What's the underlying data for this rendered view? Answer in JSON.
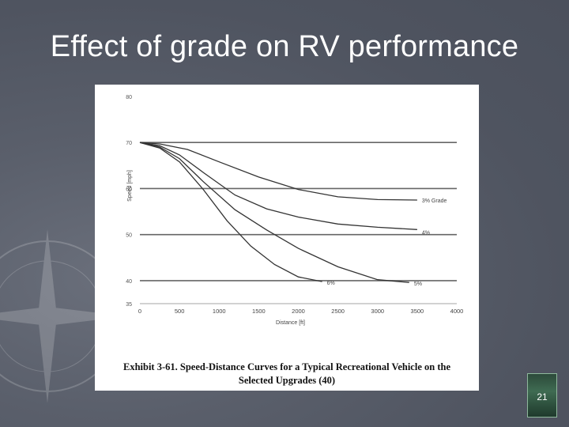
{
  "slide": {
    "title": "Effect of grade on RV performance",
    "page_number": "21"
  },
  "figure": {
    "caption_line1": "Exhibit 3-61.  Speed-Distance Curves for a Typical Recreational Vehicle on the",
    "caption_line2": "Selected Upgrades (40)"
  },
  "colors": {
    "background": "#555a66",
    "title": "#ffffff",
    "curve": "#333333"
  },
  "chart_data": {
    "type": "line",
    "xlabel": "Distance [ft]",
    "ylabel": "Speed [mph]",
    "xlim": [
      0,
      4000
    ],
    "ylim": [
      35,
      80
    ],
    "x_ticks": [
      0,
      500,
      1000,
      1500,
      2000,
      2500,
      3000,
      3500,
      4000
    ],
    "x_tick_labels": [
      "0",
      "500",
      "1000",
      "1500",
      "2000",
      "2500",
      "3000",
      "3500",
      "4000"
    ],
    "y_ticks": [
      35,
      40,
      50,
      60,
      70,
      80
    ],
    "y_tick_labels": [
      "35",
      "40",
      "50",
      "60",
      "70",
      "80"
    ],
    "hlines": [
      40,
      50,
      60,
      70
    ],
    "series": [
      {
        "name": "3% Grade",
        "x": [
          0,
          250,
          600,
          1000,
          1500,
          2000,
          2500,
          3000,
          3500
        ],
        "y": [
          70,
          69.7,
          68.5,
          65.8,
          62.5,
          59.8,
          58.2,
          57.6,
          57.5
        ]
      },
      {
        "name": "4%",
        "x": [
          0,
          250,
          500,
          800,
          1200,
          1600,
          2000,
          2500,
          3000,
          3500
        ],
        "y": [
          70,
          69.3,
          67.3,
          63.5,
          58.6,
          55.6,
          53.8,
          52.3,
          51.6,
          51.1
        ]
      },
      {
        "name": "5%",
        "x": [
          0,
          250,
          500,
          800,
          1200,
          1600,
          2000,
          2500,
          3000,
          3400
        ],
        "y": [
          70,
          69,
          66.5,
          61.5,
          55.4,
          51,
          47,
          43,
          40.2,
          39.6
        ]
      },
      {
        "name": "6%",
        "x": [
          0,
          250,
          500,
          800,
          1100,
          1400,
          1700,
          2000,
          2300
        ],
        "y": [
          70,
          68.8,
          65.8,
          59.8,
          53,
          47.5,
          43.5,
          40.8,
          39.8
        ]
      }
    ],
    "labels": [
      "3% Grade",
      "4%",
      "5%",
      "6%"
    ]
  }
}
